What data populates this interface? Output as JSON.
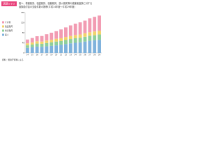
{
  "header": {
    "label": "図表1-2-2"
  },
  "chart_data": {
    "type": "stacked-bar",
    "title": "殺人、傷害致死、強盗致死、強姦致死、放火致死等の被害者遺族に対する",
    "subtitle": "遺族給付金の支給件数の推移(平成14年度～平成29年度)",
    "categories": [
      "14",
      "15",
      "16",
      "17",
      "18",
      "19",
      "20",
      "21",
      "22",
      "23",
      "24",
      "25",
      "26",
      "27",
      "28",
      "29"
    ],
    "series": [
      {
        "name": "殺人",
        "color": "#7fb2dc",
        "values": [
          20,
          22,
          25,
          24,
          26,
          28,
          30,
          32,
          35,
          38,
          40,
          42,
          45,
          48,
          50,
          52
        ]
      },
      {
        "name": "傷害致死",
        "color": "#8fcf9a",
        "values": [
          10,
          11,
          12,
          12,
          13,
          14,
          15,
          15,
          16,
          17,
          18,
          18,
          19,
          20,
          20,
          21
        ]
      },
      {
        "name": "強盗致死",
        "color": "#f2d36b",
        "values": [
          8,
          8,
          9,
          9,
          10,
          10,
          11,
          11,
          12,
          12,
          13,
          13,
          14,
          14,
          15,
          15
        ]
      },
      {
        "name": "その他",
        "color": "#f29bb2",
        "values": [
          15,
          18,
          20,
          22,
          25,
          28,
          30,
          35,
          38,
          42,
          45,
          48,
          50,
          55,
          58,
          60
        ]
      }
    ],
    "ylim": [
      0,
      160
    ],
    "yticks": [
      0,
      40,
      80,
      120,
      160
    ],
    "grid": false,
    "note": "資料：警察庁資料による"
  }
}
